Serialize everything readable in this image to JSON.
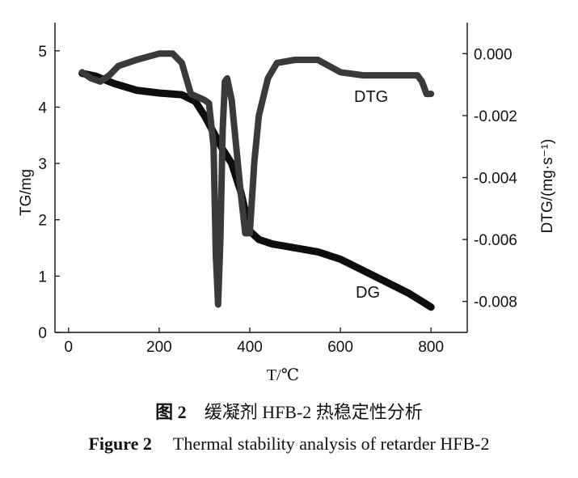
{
  "chart_data": {
    "type": "line",
    "xlabel": "T/℃",
    "ylabel_left": "TG/mg",
    "ylabel_right": "DTG/(mg·s⁻¹)",
    "xlim": [
      -30,
      880
    ],
    "ylim_left": [
      0,
      5.5
    ],
    "ylim_right": [
      -0.009,
      0.001
    ],
    "x_ticks": [
      0,
      200,
      400,
      600,
      800
    ],
    "y_ticks_left": [
      0,
      1,
      2,
      3,
      4,
      5
    ],
    "y_ticks_right": [
      0.0,
      -0.002,
      -0.004,
      -0.006,
      -0.008
    ],
    "y_tick_labels_right": [
      "0.000",
      "-0.002",
      "-0.004",
      "-0.006",
      "-0.008"
    ],
    "grid": false,
    "series": [
      {
        "name": "DG",
        "axis": "left",
        "x": [
          30,
          60,
          100,
          150,
          200,
          250,
          280,
          300,
          320,
          340,
          360,
          380,
          400,
          420,
          450,
          500,
          550,
          600,
          650,
          700,
          750,
          780,
          800
        ],
        "y": [
          4.6,
          4.55,
          4.42,
          4.3,
          4.25,
          4.22,
          4.1,
          3.85,
          3.55,
          3.25,
          3.0,
          2.5,
          1.8,
          1.65,
          1.57,
          1.5,
          1.43,
          1.3,
          1.1,
          0.9,
          0.7,
          0.55,
          0.45
        ]
      },
      {
        "name": "DTG",
        "axis": "right",
        "x": [
          30,
          50,
          70,
          90,
          110,
          150,
          200,
          230,
          250,
          270,
          300,
          310,
          320,
          325,
          330,
          335,
          340,
          345,
          350,
          360,
          370,
          380,
          390,
          400,
          410,
          420,
          440,
          460,
          500,
          550,
          600,
          650,
          700,
          750,
          770,
          780,
          790,
          800
        ],
        "y": [
          -0.0006,
          -0.0008,
          -0.0009,
          -0.0007,
          -0.0004,
          -0.0002,
          0.0,
          0.0,
          -0.0003,
          -0.0013,
          -0.0015,
          -0.0016,
          -0.003,
          -0.0065,
          -0.0081,
          -0.006,
          -0.0025,
          -0.0009,
          -0.0008,
          -0.0015,
          -0.003,
          -0.0045,
          -0.0058,
          -0.0058,
          -0.0035,
          -0.002,
          -0.0008,
          -0.0003,
          -0.0002,
          -0.0002,
          -0.0006,
          -0.0007,
          -0.0007,
          -0.0007,
          -0.0007,
          -0.0009,
          -0.0013,
          -0.0013
        ]
      }
    ]
  },
  "caption": {
    "cn_number": "图 2",
    "cn_text": "缓凝剂 HFB-2 热稳定性分析",
    "en_number": "Figure 2",
    "en_text": "Thermal stability analysis of retarder HFB-2"
  }
}
